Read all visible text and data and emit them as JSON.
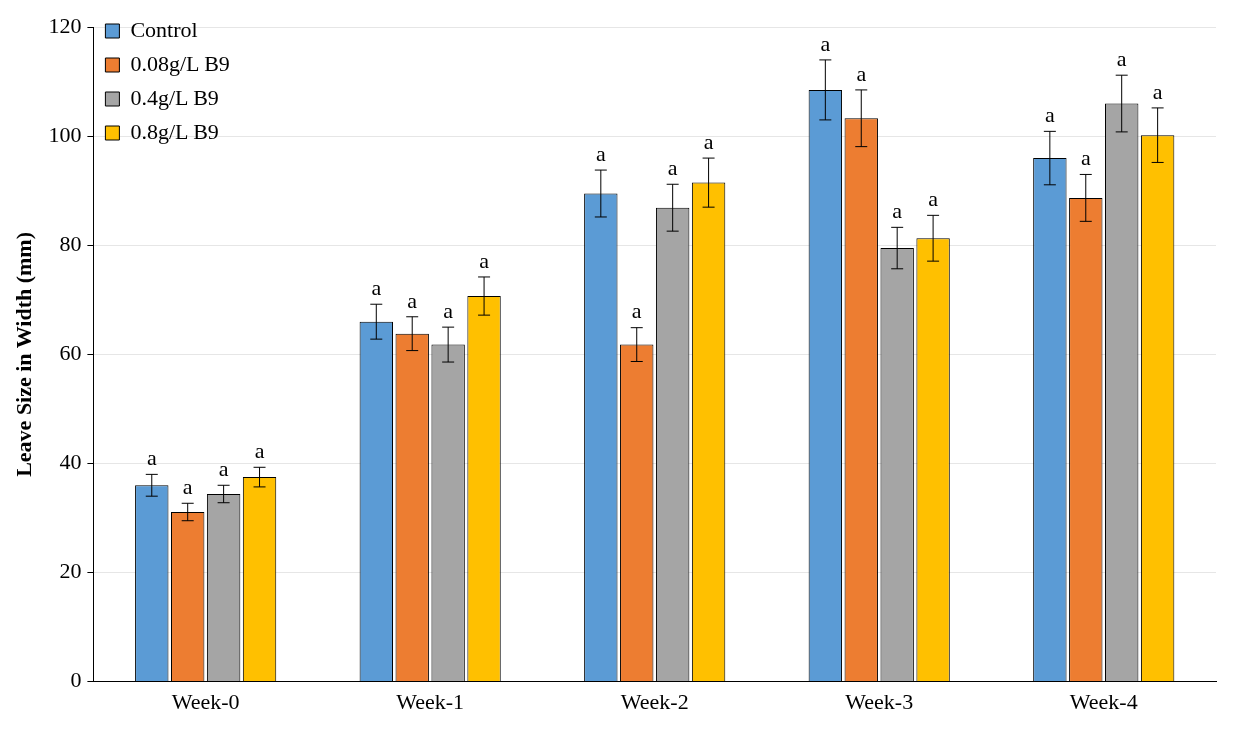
{
  "chart_data": {
    "type": "bar",
    "ylabel": "Leave Size in Width (mm)",
    "categories": [
      "Week-0",
      "Week-1",
      "Week-2",
      "Week-3",
      "Week-4"
    ],
    "series": [
      {
        "name": "Control",
        "color": "#5b9bd5",
        "values": [
          36,
          66,
          89.5,
          108.5,
          96
        ],
        "errors": [
          2,
          3.2,
          4.3,
          5.5,
          4.9
        ],
        "value_labels": [
          "a",
          "a",
          "a",
          "a",
          "a"
        ]
      },
      {
        "name": "0.08g/L B9",
        "color": "#ed7d31",
        "values": [
          31.1,
          63.8,
          61.8,
          103.3,
          88.7
        ],
        "errors": [
          1.6,
          3.1,
          3.1,
          5.2,
          4.3
        ],
        "value_labels": [
          "a",
          "a",
          "a",
          "a",
          "a"
        ]
      },
      {
        "name": "0.4g/L B9",
        "color": "#a5a5a5",
        "values": [
          34.4,
          61.8,
          86.9,
          79.5,
          106
        ],
        "errors": [
          1.6,
          3.2,
          4.3,
          3.8,
          5.2
        ],
        "value_labels": [
          "a",
          "a",
          "a",
          "a",
          "a"
        ]
      },
      {
        "name": "0.8g/L B9",
        "color": "#ffc000",
        "values": [
          37.5,
          70.7,
          91.5,
          81.3,
          100.2
        ],
        "errors": [
          1.8,
          3.5,
          4.5,
          4.2,
          5
        ],
        "value_labels": [
          "a",
          "a",
          "a",
          "a",
          "a"
        ]
      }
    ],
    "ylim": [
      0,
      120
    ],
    "yticks": [
      0,
      20,
      40,
      60,
      80,
      100,
      120
    ],
    "grid": "y",
    "legend": "top left"
  }
}
